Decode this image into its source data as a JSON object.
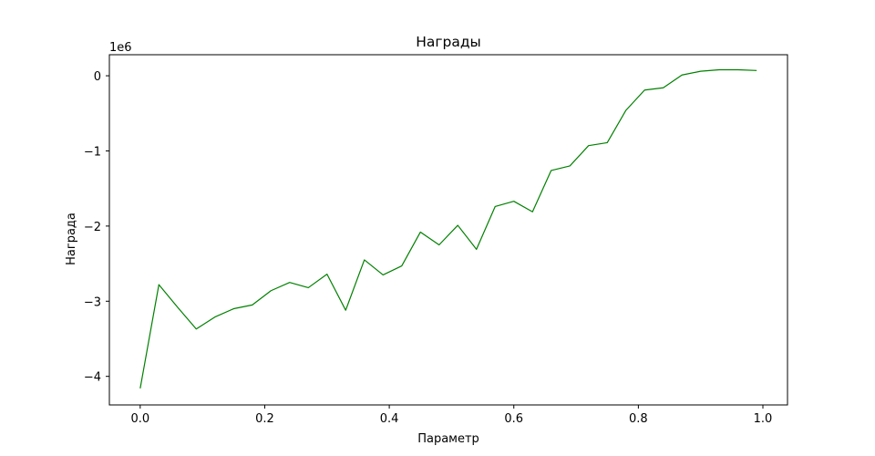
{
  "chart_data": {
    "type": "line",
    "title": "Награды",
    "xlabel": "Параметр",
    "ylabel": "Награда",
    "offset_label": "1e6",
    "xlim": [
      -0.0495,
      1.0395
    ],
    "ylim": [
      -4.38,
      0.28
    ],
    "x_ticks": [
      0.0,
      0.2,
      0.4,
      0.6,
      0.8,
      1.0
    ],
    "x_tick_labels": [
      "0.0",
      "0.2",
      "0.4",
      "0.6",
      "0.8",
      "1.0"
    ],
    "y_ticks": [
      0,
      -1,
      -2,
      -3,
      -4
    ],
    "y_tick_labels": [
      "0",
      "−1",
      "−2",
      "−3",
      "−4"
    ],
    "grid": false,
    "series": [
      {
        "color": "#008000",
        "x": [
          0.0,
          0.03,
          0.06,
          0.09,
          0.12,
          0.15,
          0.18,
          0.21,
          0.24,
          0.27,
          0.3,
          0.33,
          0.36,
          0.39,
          0.42,
          0.45,
          0.48,
          0.51,
          0.54,
          0.57,
          0.6,
          0.63,
          0.66,
          0.69,
          0.72,
          0.75,
          0.78,
          0.81,
          0.84,
          0.87,
          0.9,
          0.93,
          0.96,
          0.99
        ],
        "y": [
          -4.16,
          -2.78,
          -3.08,
          -3.37,
          -3.21,
          -3.1,
          -3.05,
          -2.86,
          -2.75,
          -2.82,
          -2.64,
          -3.12,
          -2.45,
          -2.65,
          -2.53,
          -2.08,
          -2.25,
          -1.99,
          -2.31,
          -1.74,
          -1.67,
          -1.81,
          -1.26,
          -1.2,
          -0.93,
          -0.89,
          -0.46,
          -0.19,
          -0.16,
          0.01,
          0.06,
          0.08,
          0.08,
          0.07
        ]
      }
    ]
  }
}
